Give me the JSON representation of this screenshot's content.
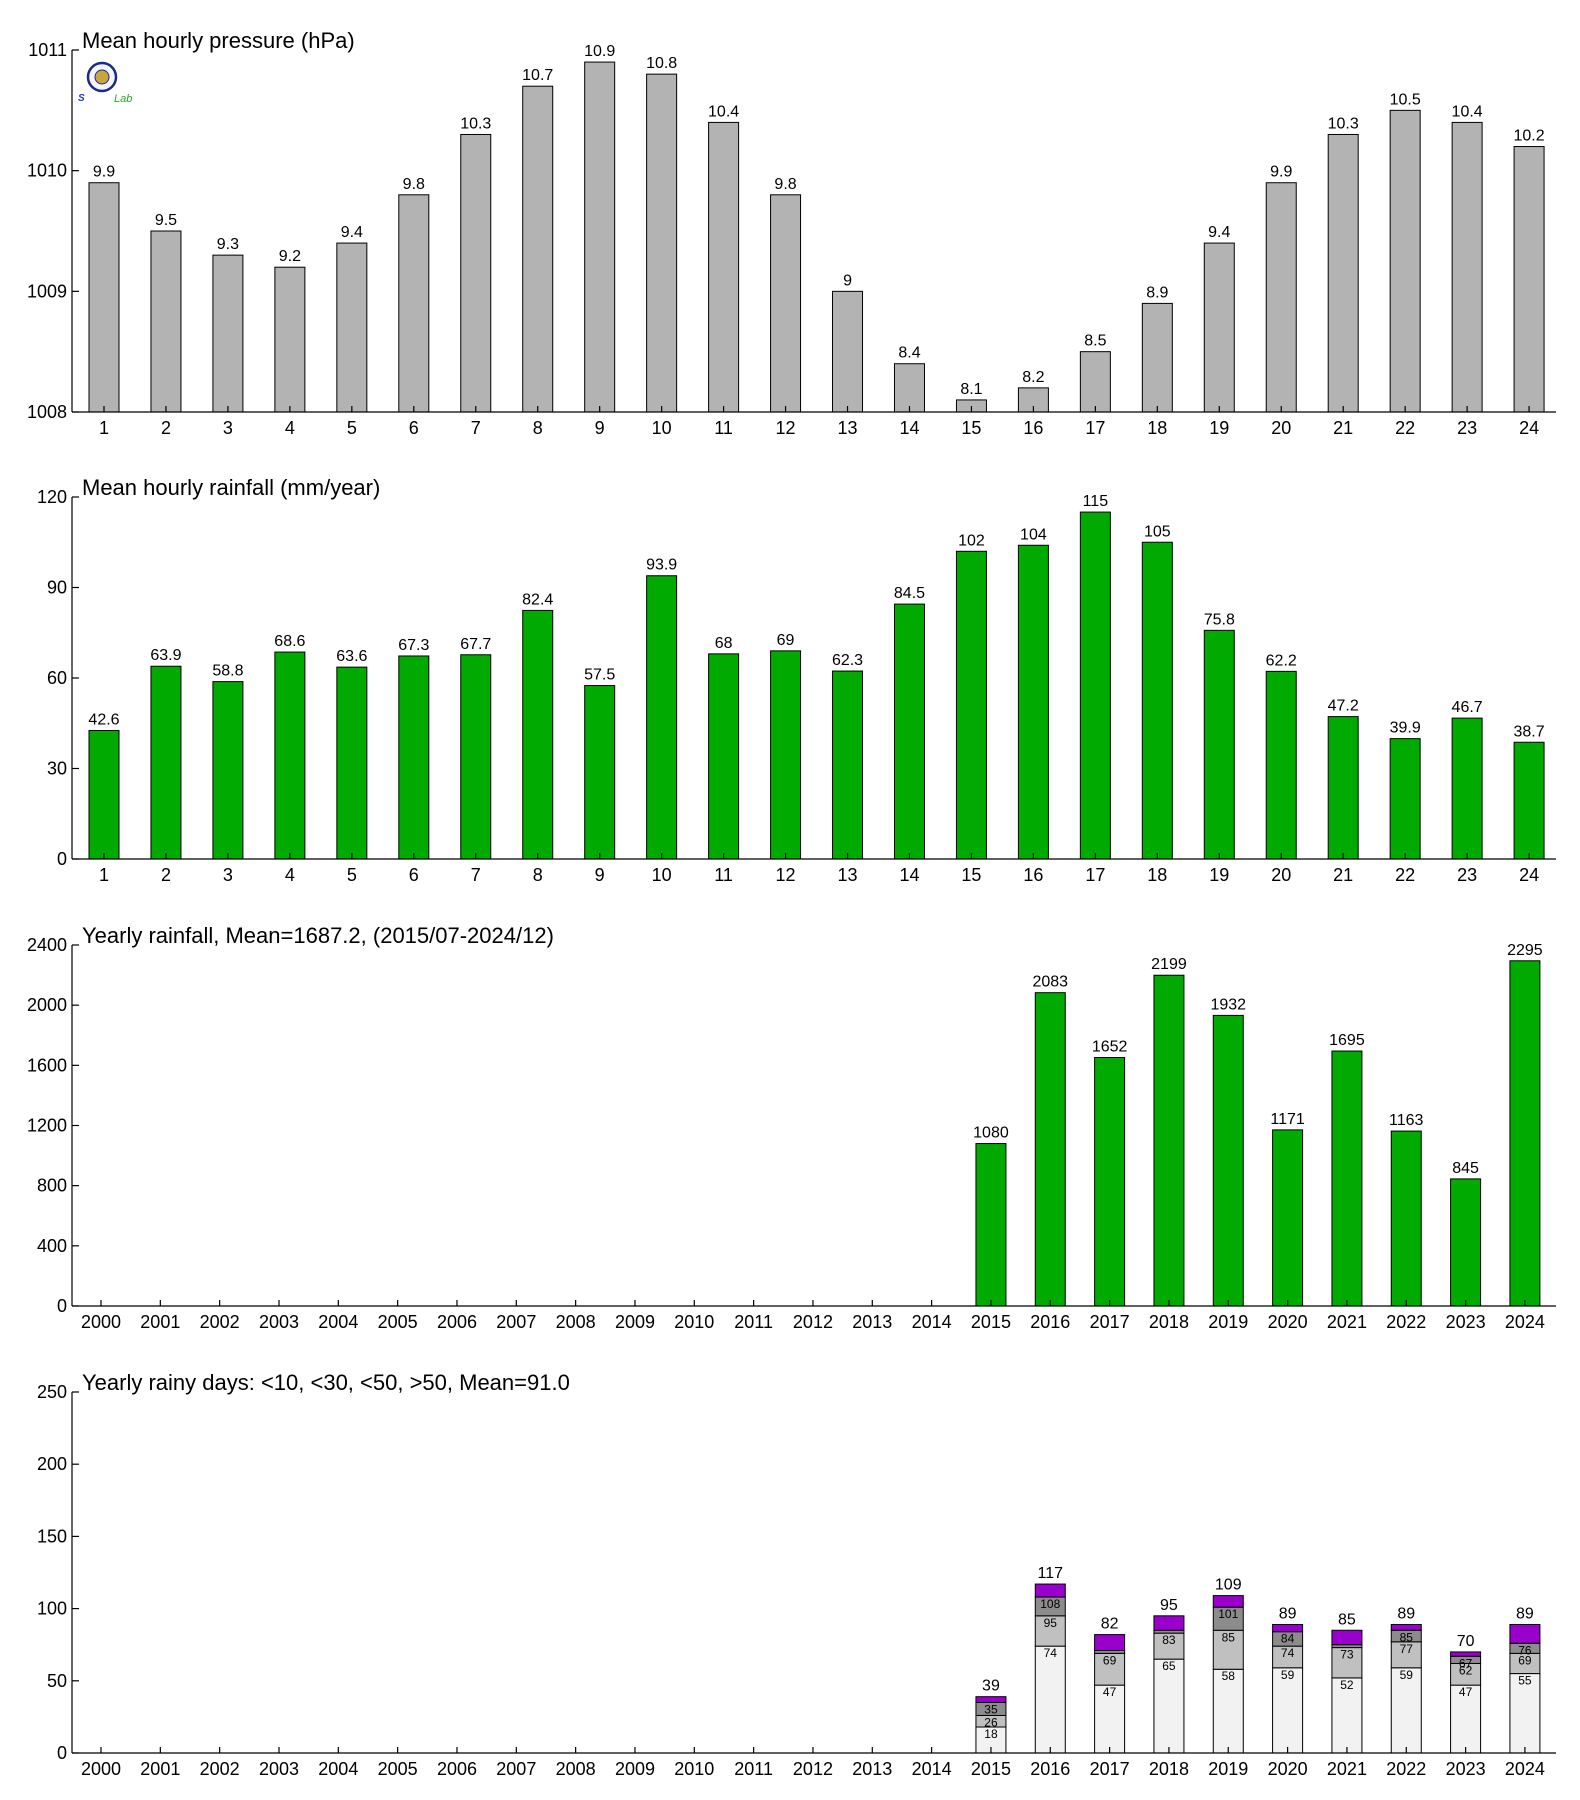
{
  "logo": {
    "text": "Lab"
  },
  "chart_data": [
    {
      "type": "bar",
      "title": "Mean hourly pressure (hPa)",
      "categories": [
        "1",
        "2",
        "3",
        "4",
        "5",
        "6",
        "7",
        "8",
        "9",
        "10",
        "11",
        "12",
        "13",
        "14",
        "15",
        "16",
        "17",
        "18",
        "19",
        "20",
        "21",
        "22",
        "23",
        "24"
      ],
      "values": [
        1009.9,
        1009.5,
        1009.3,
        1009.2,
        1009.4,
        1009.8,
        1010.3,
        1010.7,
        1010.9,
        1010.8,
        1010.4,
        1009.8,
        1009,
        1008.4,
        1008.1,
        1008.2,
        1008.5,
        1008.9,
        1009.4,
        1009.9,
        1010.3,
        1010.5,
        1010.4,
        1010.2
      ],
      "value_labels": [
        "9.9",
        "9.5",
        "9.3",
        "9.2",
        "9.4",
        "9.8",
        "10.3",
        "10.7",
        "10.9",
        "10.8",
        "10.4",
        "9.8",
        "9",
        "8.4",
        "8.1",
        "8.2",
        "8.5",
        "8.9",
        "9.4",
        "9.9",
        "10.3",
        "10.5",
        "10.4",
        "10.2"
      ],
      "ylim": [
        1008,
        1011
      ],
      "yticks": [
        1008,
        1009,
        1010,
        1011
      ],
      "color": "#b3b3b3"
    },
    {
      "type": "bar",
      "title": "Mean hourly rainfall (mm/year)",
      "categories": [
        "1",
        "2",
        "3",
        "4",
        "5",
        "6",
        "7",
        "8",
        "9",
        "10",
        "11",
        "12",
        "13",
        "14",
        "15",
        "16",
        "17",
        "18",
        "19",
        "20",
        "21",
        "22",
        "23",
        "24"
      ],
      "values": [
        42.6,
        63.9,
        58.8,
        68.6,
        63.6,
        67.3,
        67.7,
        82.4,
        57.5,
        93.9,
        68,
        69,
        62.3,
        84.5,
        102,
        104,
        115,
        105,
        75.8,
        62.2,
        47.2,
        39.9,
        46.7,
        38.7
      ],
      "value_labels": [
        "42.6",
        "63.9",
        "58.8",
        "68.6",
        "63.6",
        "67.3",
        "67.7",
        "82.4",
        "57.5",
        "93.9",
        "68",
        "69",
        "62.3",
        "84.5",
        "102",
        "104",
        "115",
        "105",
        "75.8",
        "62.2",
        "47.2",
        "39.9",
        "46.7",
        "38.7"
      ],
      "ylim": [
        0,
        120
      ],
      "yticks": [
        0,
        30,
        60,
        90,
        120
      ],
      "color": "#00aa00"
    },
    {
      "type": "bar",
      "title": "Yearly rainfall, Mean=1687.2, (2015/07-2024/12)",
      "categories": [
        "2000",
        "2001",
        "2002",
        "2003",
        "2004",
        "2005",
        "2006",
        "2007",
        "2008",
        "2009",
        "2010",
        "2011",
        "2012",
        "2013",
        "2014",
        "2015",
        "2016",
        "2017",
        "2018",
        "2019",
        "2020",
        "2021",
        "2022",
        "2023",
        "2024"
      ],
      "values": [
        null,
        null,
        null,
        null,
        null,
        null,
        null,
        null,
        null,
        null,
        null,
        null,
        null,
        null,
        null,
        1080,
        2083,
        1652,
        2199,
        1932,
        1171,
        1695,
        1163,
        845,
        2295
      ],
      "value_labels": [
        "",
        "",
        "",
        "",
        "",
        "",
        "",
        "",
        "",
        "",
        "",
        "",
        "",
        "",
        "",
        "1080",
        "2083",
        "1652",
        "2199",
        "1932",
        "1171",
        "1695",
        "1163",
        "845",
        "2295"
      ],
      "ylim": [
        0,
        2400
      ],
      "yticks": [
        0,
        400,
        800,
        1200,
        1600,
        2000,
        2400
      ],
      "color": "#00aa00"
    },
    {
      "type": "bar",
      "stacked": true,
      "title": "Yearly rainy days: <10, <30, <50, >50, Mean=91.0",
      "categories": [
        "2000",
        "2001",
        "2002",
        "2003",
        "2004",
        "2005",
        "2006",
        "2007",
        "2008",
        "2009",
        "2010",
        "2011",
        "2012",
        "2013",
        "2014",
        "2015",
        "2016",
        "2017",
        "2018",
        "2019",
        "2020",
        "2021",
        "2022",
        "2023",
        "2024"
      ],
      "cumulative": [
        null,
        null,
        null,
        null,
        null,
        null,
        null,
        null,
        null,
        null,
        null,
        null,
        null,
        null,
        null,
        [
          18,
          26,
          35,
          39
        ],
        [
          74,
          95,
          108,
          117
        ],
        [
          47,
          69,
          71,
          82
        ],
        [
          65,
          83,
          85,
          95
        ],
        [
          58,
          85,
          101,
          109
        ],
        [
          59,
          74,
          84,
          89
        ],
        [
          52,
          73,
          75,
          85
        ],
        [
          59,
          77,
          85,
          89
        ],
        [
          47,
          62,
          67,
          70
        ],
        [
          55,
          69,
          76,
          89
        ]
      ],
      "segment_labels": [
        null,
        null,
        null,
        null,
        null,
        null,
        null,
        null,
        null,
        null,
        null,
        null,
        null,
        null,
        null,
        [
          "18",
          "26",
          "35",
          ""
        ],
        [
          "74",
          "95",
          "108",
          ""
        ],
        [
          "47",
          "69",
          "",
          ""
        ],
        [
          "65",
          "83",
          "",
          ""
        ],
        [
          "58",
          "85",
          "101",
          ""
        ],
        [
          "59",
          "74",
          "84",
          ""
        ],
        [
          "52",
          "73",
          "",
          ""
        ],
        [
          "59",
          "77",
          "85",
          ""
        ],
        [
          "47",
          "62",
          "67",
          ""
        ],
        [
          "55",
          "69",
          "76",
          ""
        ]
      ],
      "totals": [
        "",
        "",
        "",
        "",
        "",
        "",
        "",
        "",
        "",
        "",
        "",
        "",
        "",
        "",
        "",
        "39",
        "117",
        "82",
        "95",
        "109",
        "89",
        "85",
        "89",
        "70",
        "89"
      ],
      "segment_colors": [
        "#f2f2f2",
        "#c0c0c0",
        "#8c8c8c",
        "#9900cc"
      ],
      "ylim": [
        0,
        250
      ],
      "yticks": [
        0,
        50,
        100,
        150,
        200,
        250
      ]
    }
  ]
}
